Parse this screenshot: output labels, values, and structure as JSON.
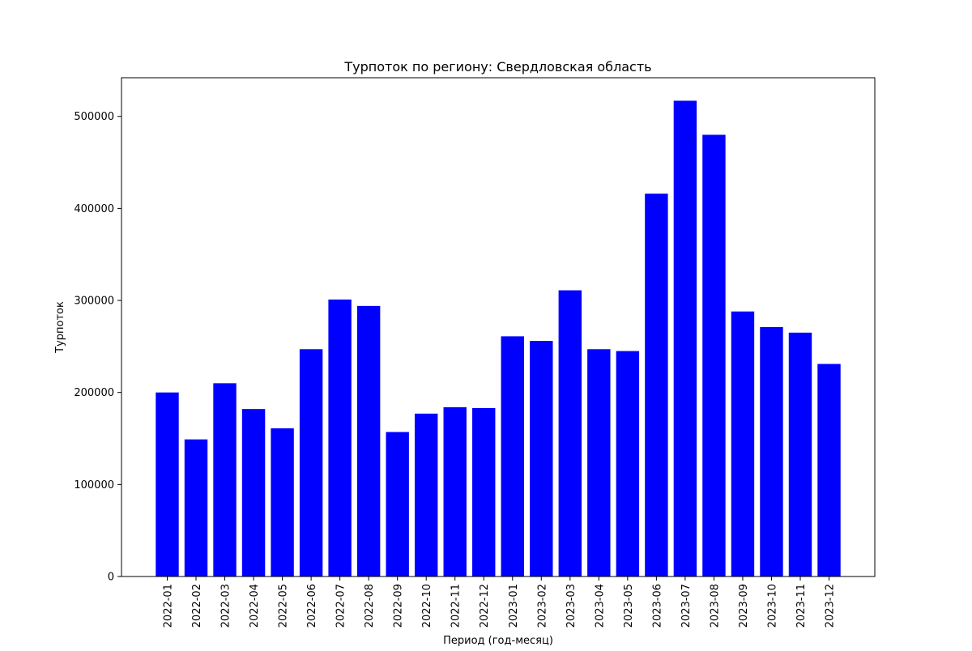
{
  "chart_data": {
    "type": "bar",
    "title": "Турпоток по региону: Свердловская область",
    "xlabel": "Период (год-месяц)",
    "ylabel": "Турпоток",
    "categories": [
      "2022-01",
      "2022-02",
      "2022-03",
      "2022-04",
      "2022-05",
      "2022-06",
      "2022-07",
      "2022-08",
      "2022-09",
      "2022-10",
      "2022-11",
      "2022-12",
      "2023-01",
      "2023-02",
      "2023-03",
      "2023-04",
      "2023-05",
      "2023-06",
      "2023-07",
      "2023-08",
      "2023-09",
      "2023-10",
      "2023-11",
      "2023-12"
    ],
    "values": [
      200000,
      149000,
      210000,
      182000,
      161000,
      247000,
      301000,
      294000,
      157000,
      177000,
      184000,
      183000,
      261000,
      256000,
      311000,
      247000,
      245000,
      416000,
      517000,
      480000,
      288000,
      271000,
      265000,
      231000
    ],
    "ylim": [
      0,
      542000
    ],
    "yticks": [
      0,
      100000,
      200000,
      300000,
      400000,
      500000
    ],
    "grid": false,
    "legend": false,
    "bar_color": "#0000ff"
  }
}
